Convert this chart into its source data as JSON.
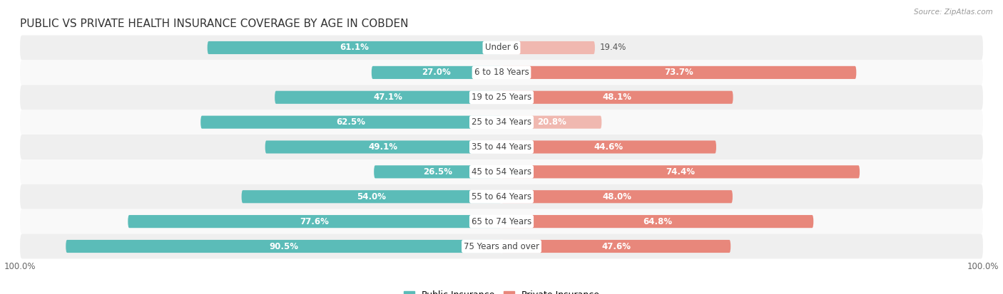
{
  "title": "PUBLIC VS PRIVATE HEALTH INSURANCE COVERAGE BY AGE IN COBDEN",
  "source": "Source: ZipAtlas.com",
  "categories": [
    "Under 6",
    "6 to 18 Years",
    "19 to 25 Years",
    "25 to 34 Years",
    "35 to 44 Years",
    "45 to 54 Years",
    "55 to 64 Years",
    "65 to 74 Years",
    "75 Years and over"
  ],
  "public_values": [
    61.1,
    27.0,
    47.1,
    62.5,
    49.1,
    26.5,
    54.0,
    77.6,
    90.5
  ],
  "private_values": [
    19.4,
    73.7,
    48.1,
    20.8,
    44.6,
    74.4,
    48.0,
    64.8,
    47.6
  ],
  "public_color": "#5bbcb8",
  "private_color": "#e8877b",
  "private_color_light": "#f0b8b0",
  "bg_color": "#ffffff",
  "row_bg_even": "#efefef",
  "row_bg_odd": "#f9f9f9",
  "bar_height": 0.52,
  "max_val": 100.0,
  "title_fontsize": 11,
  "label_fontsize": 8.5,
  "category_fontsize": 8.5,
  "inside_label_threshold": 20
}
